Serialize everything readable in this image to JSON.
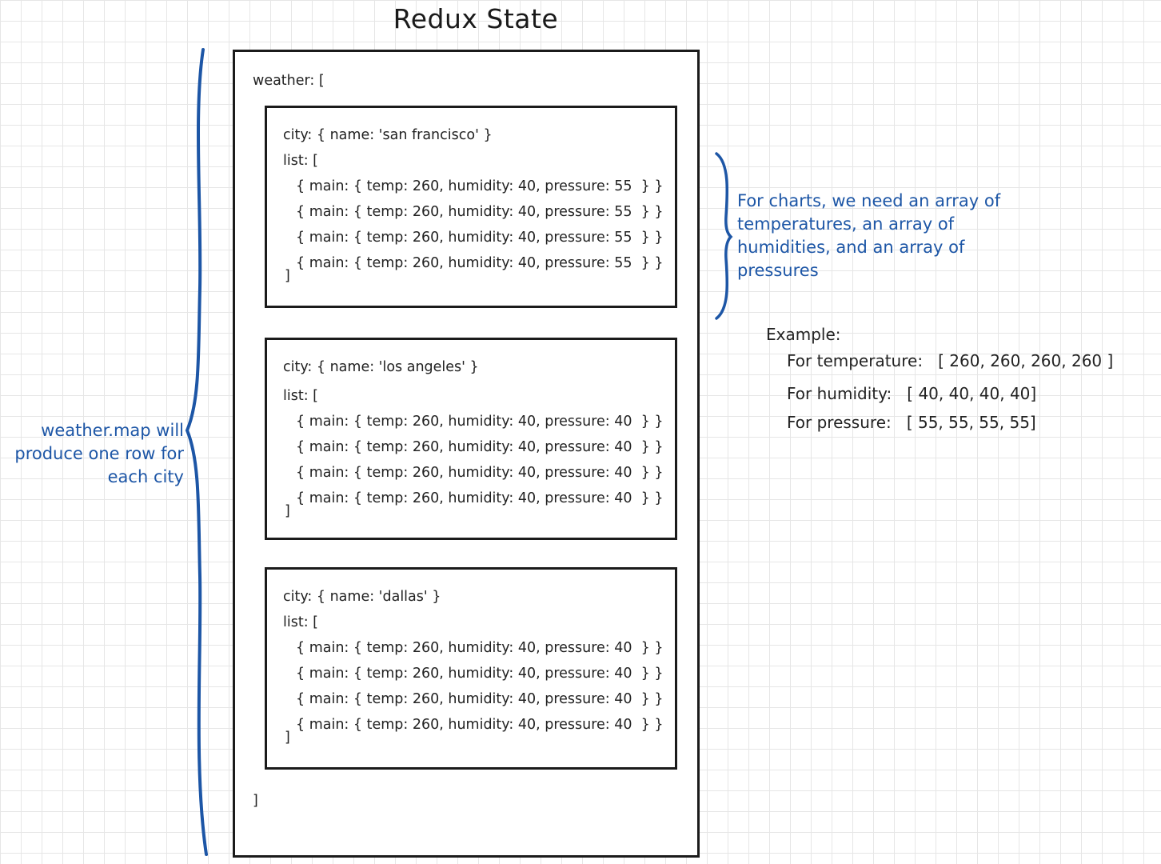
{
  "title": "Redux State",
  "weather_open": "weather: [",
  "weather_close": "]",
  "cities": [
    {
      "city_line": "city: { name: 'san francisco' }",
      "list_open": "list: [",
      "entries": [
        "{ main: { temp: 260, humidity: 40, pressure: 55  } }",
        "{ main: { temp: 260, humidity: 40, pressure: 55  } }",
        "{ main: { temp: 260, humidity: 40, pressure: 55  } }",
        "{ main: { temp: 260, humidity: 40, pressure: 55  } }"
      ],
      "list_close": "]"
    },
    {
      "city_line": "city: { name: 'los angeles' }",
      "list_open": "list: [",
      "entries": [
        "{ main: { temp: 260, humidity: 40, pressure: 40  } }",
        "{ main: { temp: 260, humidity: 40, pressure: 40  } }",
        "{ main: { temp: 260, humidity: 40, pressure: 40  } }",
        "{ main: { temp: 260, humidity: 40, pressure: 40  } }"
      ],
      "list_close": "]"
    },
    {
      "city_line": "city: { name: 'dallas' }",
      "list_open": "list: [",
      "entries": [
        "{ main: { temp: 260, humidity: 40, pressure: 40  } }",
        "{ main: { temp: 260, humidity: 40, pressure: 40  } }",
        "{ main: { temp: 260, humidity: 40, pressure: 40  } }",
        "{ main: { temp: 260, humidity: 40, pressure: 40  } }"
      ],
      "list_close": "]"
    }
  ],
  "left_note": [
    "weather.map will",
    "produce one row for",
    "each city"
  ],
  "right_note": [
    "For charts, we need an array of",
    "temperatures, an array of",
    "humidities, and an array of",
    "pressures"
  ],
  "example": {
    "heading": "Example:",
    "rows": [
      {
        "label": "For temperature:",
        "value": "[ 260, 260, 260, 260 ]"
      },
      {
        "label": "For humidity:",
        "value": "[ 40, 40, 40, 40]"
      },
      {
        "label": "For pressure:",
        "value": "[ 55, 55, 55, 55]"
      }
    ]
  },
  "colors": {
    "annotation": "#1d56a6",
    "ink": "#1b1b1b",
    "grid": "#e6e6e6"
  }
}
